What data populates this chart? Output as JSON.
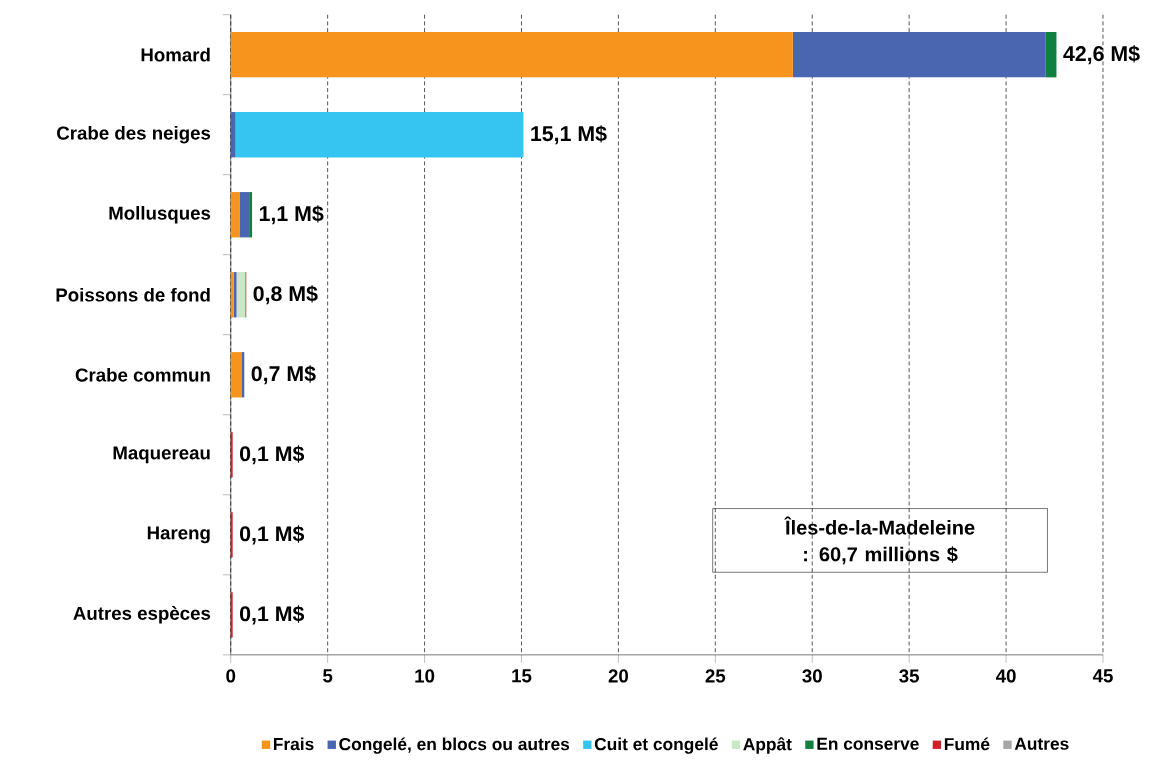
{
  "chart_data": {
    "type": "bar",
    "orientation": "horizontal",
    "stacked": true,
    "categories": [
      "Homard",
      "Crabe des neiges",
      "Mollusques",
      "Poissons de fond",
      "Crabe commun",
      "Maquereau",
      "Hareng",
      "Autres espèces"
    ],
    "series": [
      {
        "name": "Frais",
        "color": "#f7941d",
        "values": [
          29.0,
          null,
          0.45,
          0.15,
          0.55,
          null,
          null,
          null
        ]
      },
      {
        "name": "Congelé, en blocs ou autres",
        "color": "#4a66b0",
        "values": [
          13.05,
          0.25,
          0.5,
          0.15,
          0.15,
          null,
          null,
          null
        ]
      },
      {
        "name": "Cuit et congelé",
        "color": "#35c5f0",
        "values": [
          null,
          14.85,
          null,
          null,
          null,
          null,
          null,
          null
        ]
      },
      {
        "name": "Appât",
        "color": "#c9e8c5",
        "values": [
          null,
          null,
          null,
          0.45,
          null,
          null,
          null,
          null
        ]
      },
      {
        "name": "En conserve",
        "color": "#0f8040",
        "values": [
          0.55,
          null,
          0.15,
          null,
          null,
          null,
          null,
          null
        ]
      },
      {
        "name": "Fumé",
        "color": "#c8252a",
        "values": [
          null,
          null,
          null,
          0.05,
          null,
          0.1,
          0.1,
          0.1
        ]
      },
      {
        "name": "Autres",
        "color": "#a6a6a6",
        "values": [
          null,
          null,
          null,
          null,
          null,
          null,
          null,
          null
        ]
      }
    ],
    "totals": [
      "42,6 M$",
      "15,1 M$",
      "1,1 M$",
      "0,8 M$",
      "0,7 M$",
      "0,1 M$",
      "0,1 M$",
      "0,1 M$"
    ],
    "xlim": [
      0,
      45
    ],
    "xticks": [
      0,
      5,
      10,
      15,
      20,
      25,
      30,
      35,
      40,
      45
    ],
    "grid": "x",
    "legend": "bottom",
    "annotations": [
      "Îles-de-la-Madeleine : 60,7 millions $"
    ]
  }
}
